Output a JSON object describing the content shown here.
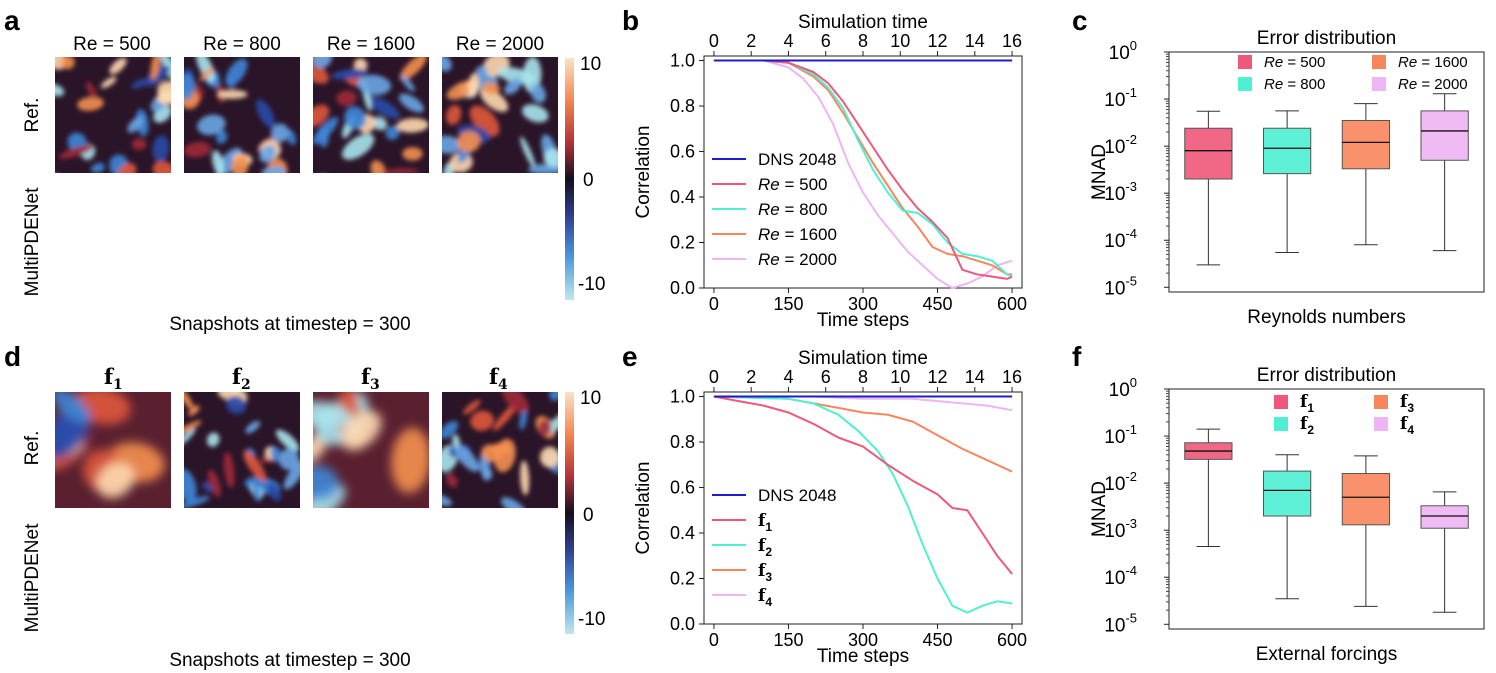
{
  "panels": {
    "a": "a",
    "b": "b",
    "c": "c",
    "d": "d",
    "e": "e",
    "f": "f"
  },
  "snapshots_top": {
    "columns": [
      "Re = 500",
      "Re = 800",
      "Re = 1600",
      "Re = 2000"
    ],
    "rows": [
      "Ref.",
      "MultiPDENet"
    ],
    "caption": "Snapshots at timestep = 300",
    "colorbar_ticks": [
      "10",
      "0",
      "-10"
    ]
  },
  "snapshots_bottom": {
    "columns": [
      "f",
      "f",
      "f",
      "f"
    ],
    "column_subscripts": [
      "1",
      "2",
      "3",
      "4"
    ],
    "rows": [
      "Ref.",
      "MultiPDENet"
    ],
    "caption": "Snapshots at timestep = 300",
    "colorbar_ticks": [
      "10",
      "0",
      "-10"
    ]
  },
  "colors": {
    "dns": "#1d1dcf",
    "re500": "#f0587a",
    "re800": "#4ef0d4",
    "re1600": "#f8865c",
    "re2000": "#eeb4f4",
    "f1": "#f0587a",
    "f2": "#4ef0d4",
    "f3": "#f8865c",
    "f4": "#eeb4f4"
  },
  "chart_data": [
    {
      "id": "b",
      "type": "line",
      "xlabel": "Time steps",
      "ylabel": "Correlation",
      "top_xlabel": "Simulation time",
      "xticks": [
        0,
        150,
        300,
        450,
        600
      ],
      "top_xticks": [
        0,
        2,
        4,
        6,
        8,
        10,
        12,
        14,
        16
      ],
      "xlim": [
        -20,
        620
      ],
      "ylim": [
        0,
        1.02
      ],
      "yticks": [
        0.0,
        0.2,
        0.4,
        0.6,
        0.8,
        1.0
      ],
      "series": [
        {
          "name": "DNS 2048",
          "label": "DNS 2048",
          "sub": "",
          "math": false,
          "color": "#1d1dcf",
          "x": [
            0,
            600
          ],
          "y": [
            1.0,
            1.0
          ]
        },
        {
          "name": "Re = 500",
          "label": "Re",
          "sub": "= 500",
          "math": true,
          "color": "#f0587a",
          "x": [
            0,
            100,
            150,
            200,
            230,
            260,
            290,
            320,
            350,
            380,
            410,
            440,
            470,
            500,
            530,
            560,
            590,
            600
          ],
          "y": [
            1.0,
            1.0,
            0.99,
            0.95,
            0.9,
            0.82,
            0.72,
            0.62,
            0.52,
            0.43,
            0.35,
            0.29,
            0.22,
            0.08,
            0.06,
            0.05,
            0.04,
            0.05
          ]
        },
        {
          "name": "Re = 800",
          "label": "Re",
          "sub": "= 800",
          "math": true,
          "color": "#4ef0d4",
          "x": [
            0,
            100,
            150,
            200,
            230,
            260,
            290,
            320,
            350,
            380,
            410,
            440,
            470,
            500,
            530,
            560,
            590,
            600
          ],
          "y": [
            1.0,
            1.0,
            0.99,
            0.94,
            0.88,
            0.79,
            0.65,
            0.52,
            0.42,
            0.34,
            0.33,
            0.28,
            0.2,
            0.15,
            0.14,
            0.12,
            0.06,
            0.05
          ]
        },
        {
          "name": "Re = 1600",
          "label": "Re",
          "sub": "= 1600",
          "math": true,
          "color": "#f8865c",
          "x": [
            0,
            100,
            150,
            200,
            230,
            260,
            290,
            320,
            350,
            380,
            410,
            440,
            470,
            500,
            530,
            560,
            590,
            600
          ],
          "y": [
            1.0,
            1.0,
            0.99,
            0.93,
            0.87,
            0.77,
            0.66,
            0.55,
            0.45,
            0.35,
            0.27,
            0.18,
            0.15,
            0.14,
            0.12,
            0.1,
            0.06,
            0.06
          ]
        },
        {
          "name": "Re = 2000",
          "label": "Re",
          "sub": "= 2000",
          "math": true,
          "color": "#eeb4f4",
          "x": [
            0,
            100,
            150,
            180,
            210,
            240,
            270,
            300,
            330,
            360,
            390,
            420,
            450,
            480,
            510,
            540,
            570,
            600
          ],
          "y": [
            1.0,
            1.0,
            0.97,
            0.92,
            0.84,
            0.72,
            0.55,
            0.42,
            0.32,
            0.24,
            0.16,
            0.1,
            0.04,
            0.0,
            0.02,
            0.05,
            0.1,
            0.12
          ]
        }
      ]
    },
    {
      "id": "c",
      "type": "box",
      "title": "Error distribution",
      "xlabel": "Reynolds numbers",
      "ylabel": "MNAD",
      "yscale": "log",
      "ytick_exponents": [
        "0",
        "-1",
        "-2",
        "-3",
        "-4",
        "-5"
      ],
      "ylim_log10": [
        -5.1,
        0
      ],
      "boxes": [
        {
          "name": "Re = 500",
          "label": "Re",
          "sub": "= 500",
          "color": "#f0587a",
          "whisker_low": 3e-05,
          "q1": 0.002,
          "median": 0.008,
          "q3": 0.024,
          "whisker_high": 0.055
        },
        {
          "name": "Re = 800",
          "label": "Re",
          "sub": "= 800",
          "color": "#4ef0d4",
          "whisker_low": 5.5e-05,
          "q1": 0.0026,
          "median": 0.009,
          "q3": 0.024,
          "whisker_high": 0.056
        },
        {
          "name": "Re = 1600",
          "label": "Re",
          "sub": "= 1600",
          "color": "#f8865c",
          "whisker_low": 8e-05,
          "q1": 0.0033,
          "median": 0.012,
          "q3": 0.035,
          "whisker_high": 0.08
        },
        {
          "name": "Re = 2000",
          "label": "Re",
          "sub": "= 2000",
          "color": "#eeb4f4",
          "whisker_low": 6e-05,
          "q1": 0.005,
          "median": 0.021,
          "q3": 0.056,
          "whisker_high": 0.13
        }
      ]
    },
    {
      "id": "e",
      "type": "line",
      "xlabel": "Time steps",
      "ylabel": "Correlation",
      "top_xlabel": "Simulation time",
      "xticks": [
        0,
        150,
        300,
        450,
        600
      ],
      "top_xticks": [
        0,
        2,
        4,
        6,
        8,
        10,
        12,
        14,
        16
      ],
      "xlim": [
        -20,
        620
      ],
      "ylim": [
        0,
        1.02
      ],
      "yticks": [
        0.0,
        0.2,
        0.4,
        0.6,
        0.8,
        1.0
      ],
      "series": [
        {
          "name": "DNS 2048",
          "label": "DNS 2048",
          "sub": "",
          "math": false,
          "color": "#1d1dcf",
          "x": [
            0,
            600
          ],
          "y": [
            1.0,
            1.0
          ]
        },
        {
          "name": "f1",
          "label": "f",
          "sub": "1",
          "math": true,
          "color": "#f0587a",
          "x": [
            0,
            50,
            100,
            150,
            200,
            250,
            300,
            350,
            400,
            450,
            480,
            510,
            540,
            570,
            600
          ],
          "y": [
            1.0,
            0.98,
            0.96,
            0.93,
            0.88,
            0.82,
            0.78,
            0.7,
            0.63,
            0.57,
            0.51,
            0.5,
            0.4,
            0.3,
            0.22
          ]
        },
        {
          "name": "f2",
          "label": "f",
          "sub": "2",
          "math": true,
          "color": "#4ef0d4",
          "x": [
            0,
            150,
            200,
            250,
            290,
            330,
            360,
            390,
            420,
            450,
            480,
            510,
            540,
            570,
            600
          ],
          "y": [
            1.0,
            0.99,
            0.97,
            0.92,
            0.85,
            0.76,
            0.66,
            0.52,
            0.35,
            0.2,
            0.08,
            0.05,
            0.08,
            0.1,
            0.09
          ]
        },
        {
          "name": "f3",
          "label": "f",
          "sub": "3",
          "math": true,
          "color": "#f8865c",
          "x": [
            0,
            150,
            200,
            250,
            300,
            350,
            400,
            450,
            500,
            550,
            600
          ],
          "y": [
            1.0,
            0.99,
            0.97,
            0.95,
            0.93,
            0.92,
            0.89,
            0.83,
            0.77,
            0.72,
            0.67
          ]
        },
        {
          "name": "f4",
          "label": "f",
          "sub": "4",
          "math": true,
          "color": "#eeb4f4",
          "x": [
            0,
            200,
            300,
            400,
            450,
            500,
            550,
            600
          ],
          "y": [
            1.0,
            1.0,
            0.99,
            0.99,
            0.98,
            0.97,
            0.96,
            0.94
          ]
        }
      ]
    },
    {
      "id": "f",
      "type": "box",
      "title": "Error distribution",
      "xlabel": "External forcings",
      "ylabel": "MNAD",
      "yscale": "log",
      "ytick_exponents": [
        "0",
        "-1",
        "-2",
        "-3",
        "-4",
        "-5"
      ],
      "ylim_log10": [
        -5.1,
        0
      ],
      "boxes": [
        {
          "name": "f1",
          "label": "f",
          "sub": "1",
          "color": "#f0587a",
          "whisker_low": 0.00045,
          "q1": 0.032,
          "median": 0.048,
          "q3": 0.072,
          "whisker_high": 0.14
        },
        {
          "name": "f2",
          "label": "f",
          "sub": "2",
          "color": "#4ef0d4",
          "whisker_low": 3.5e-05,
          "q1": 0.002,
          "median": 0.007,
          "q3": 0.018,
          "whisker_high": 0.04
        },
        {
          "name": "f3",
          "label": "f",
          "sub": "3",
          "color": "#f8865c",
          "whisker_low": 2.4e-05,
          "q1": 0.0013,
          "median": 0.005,
          "q3": 0.016,
          "whisker_high": 0.038
        },
        {
          "name": "f4",
          "label": "f",
          "sub": "4",
          "color": "#eeb4f4",
          "whisker_low": 1.8e-05,
          "q1": 0.0011,
          "median": 0.002,
          "q3": 0.0033,
          "whisker_high": 0.0065
        }
      ]
    }
  ]
}
